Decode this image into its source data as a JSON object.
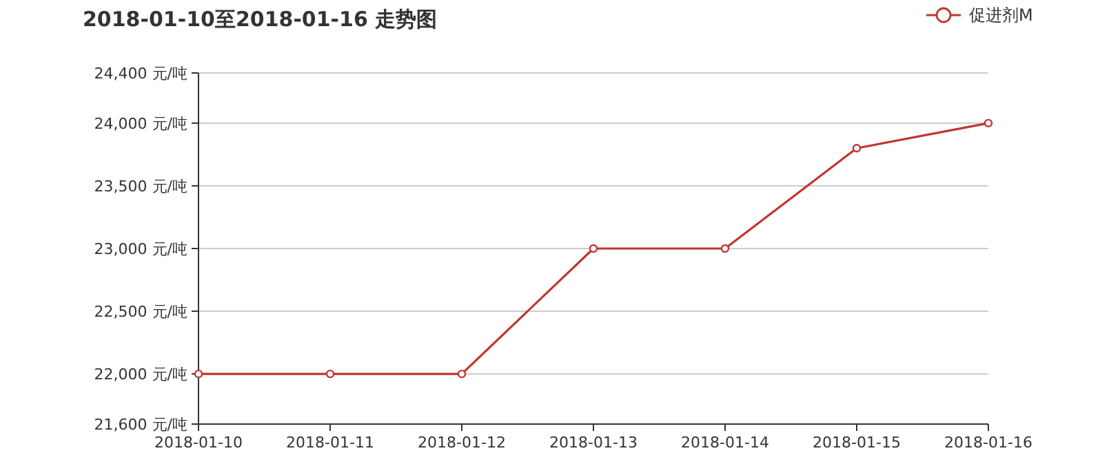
{
  "chart_data": {
    "type": "line",
    "title": "2018-01-10至2018-01-16 走势图",
    "categories": [
      "2018-01-10",
      "2018-01-11",
      "2018-01-12",
      "2018-01-13",
      "2018-01-14",
      "2018-01-15",
      "2018-01-16"
    ],
    "series": [
      {
        "name": "促进剂M",
        "color": "#c23531",
        "values": [
          22000,
          22000,
          22000,
          23000,
          23000,
          23800,
          24000
        ]
      }
    ],
    "ylim": [
      21600,
      24400
    ],
    "yticks": [
      {
        "value": 21600,
        "label": "21,600 元/吨"
      },
      {
        "value": 22000,
        "label": "22,000 元/吨"
      },
      {
        "value": 22500,
        "label": "22,500 元/吨"
      },
      {
        "value": 23000,
        "label": "23,000 元/吨"
      },
      {
        "value": 23500,
        "label": "23,500 元/吨"
      },
      {
        "value": 24000,
        "label": "24,000 元/吨"
      },
      {
        "value": 24400,
        "label": "24,400 元/吨"
      }
    ],
    "grid": "y",
    "legend": "top right",
    "marker": "circle",
    "line_style": "solid"
  }
}
